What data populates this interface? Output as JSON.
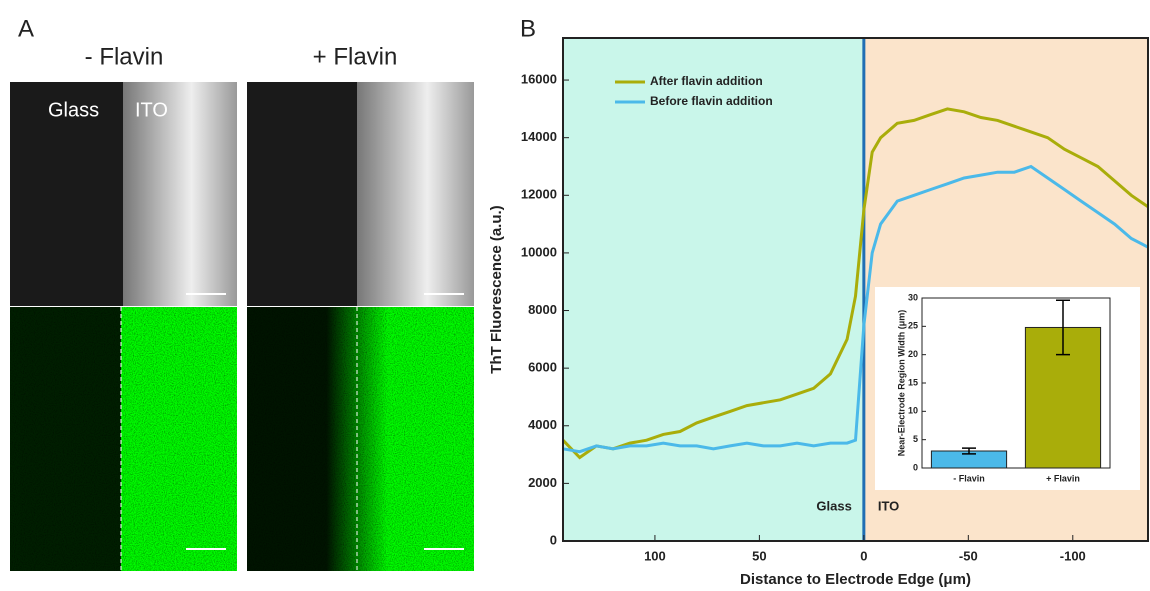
{
  "panel_a": {
    "label": "A",
    "columns": [
      "- Flavin",
      "+ Flavin"
    ],
    "region_labels": [
      "Glass",
      "ITO"
    ]
  },
  "chart_data": [
    {
      "type": "line",
      "label": "B",
      "xlabel": "Distance to Electrode Edge (μm)",
      "ylabel": "ThT Fluorescence (a.u.)",
      "xlim": [
        144,
        -136
      ],
      "xticks": [
        100,
        50,
        0,
        -50,
        -100
      ],
      "ylim": [
        0,
        17460
      ],
      "yticks": [
        0,
        2000,
        4000,
        6000,
        8000,
        10000,
        12000,
        14000,
        16000
      ],
      "legend": "upper left",
      "regions": [
        {
          "label": "Glass",
          "color": "#c9f6ea",
          "range": [
            144,
            0
          ]
        },
        {
          "label": "ITO",
          "color": "#fbe4cb",
          "range": [
            0,
            -136
          ]
        }
      ],
      "boundary_color": "#1f6fb4",
      "x": [
        144,
        136,
        128,
        120,
        112,
        104,
        96,
        88,
        80,
        72,
        64,
        56,
        48,
        40,
        32,
        24,
        16,
        8,
        4,
        0,
        -4,
        -8,
        -16,
        -24,
        -32,
        -40,
        -48,
        -56,
        -64,
        -72,
        -80,
        -88,
        -96,
        -104,
        -112,
        -120,
        -128,
        -136
      ],
      "series": [
        {
          "name": "After flavin addition",
          "color": "#a9ad0a",
          "values": [
            3500,
            2900,
            3300,
            3200,
            3400,
            3500,
            3700,
            3800,
            4100,
            4300,
            4500,
            4700,
            4800,
            4900,
            5100,
            5300,
            5800,
            7000,
            8500,
            11500,
            13500,
            14000,
            14500,
            14600,
            14800,
            15000,
            14900,
            14700,
            14600,
            14400,
            14200,
            14000,
            13600,
            13300,
            13000,
            12500,
            12000,
            11600
          ]
        },
        {
          "name": "Before flavin addition",
          "color": "#4bb9e9",
          "values": [
            3200,
            3100,
            3300,
            3200,
            3300,
            3300,
            3400,
            3300,
            3300,
            3200,
            3300,
            3400,
            3300,
            3300,
            3400,
            3300,
            3400,
            3400,
            3500,
            7500,
            10000,
            11000,
            11800,
            12000,
            12200,
            12400,
            12600,
            12700,
            12800,
            12800,
            13000,
            12600,
            12200,
            11800,
            11400,
            11000,
            10500,
            10200
          ]
        }
      ]
    },
    {
      "type": "bar",
      "ylabel": "Near-Electrode Region Width (μm)",
      "categories": [
        "- Flavin",
        "+ Flavin"
      ],
      "values": [
        3,
        24.8
      ],
      "errors": [
        0.5,
        4.8
      ],
      "colors": [
        "#4bb9e9",
        "#a9ad0a"
      ],
      "ylim": [
        0,
        30
      ],
      "yticks": [
        0,
        5,
        10,
        15,
        20,
        25,
        30
      ]
    }
  ]
}
